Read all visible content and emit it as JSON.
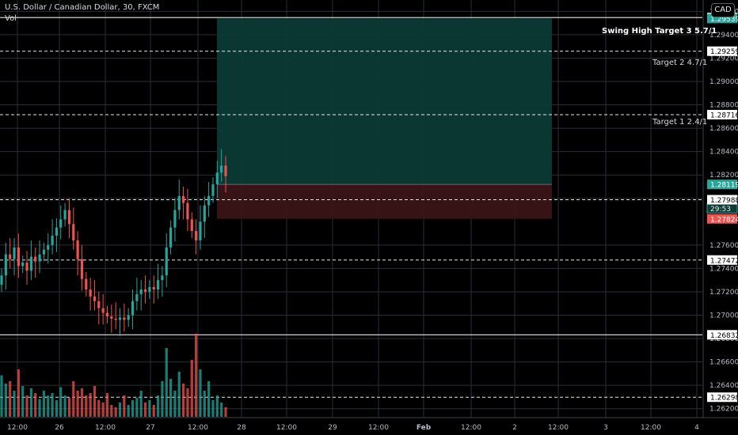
{
  "header": {
    "symbol_title": "U.S. Dollar / Canadian Dollar, 30, FXCM",
    "volume_label": "Vol",
    "currency_button": "CAD"
  },
  "price_axis": {
    "tick_labels": [
      "1.26200",
      "1.26400",
      "1.26600",
      "1.26800",
      "1.27000",
      "1.27200",
      "1.27400",
      "1.27600",
      "1.28000",
      "1.28200",
      "1.28400",
      "1.28600",
      "1.28800",
      "1.29000",
      "1.29200",
      "1.29400",
      "1.29600"
    ],
    "markers": [
      {
        "label": "1.29547",
        "style": "white"
      },
      {
        "label": "1.29539",
        "style": "green"
      },
      {
        "label": "1.29259",
        "style": "white"
      },
      {
        "label": "1.28716",
        "style": "white"
      },
      {
        "label": "1.28119",
        "style": "green"
      },
      {
        "label": "29:53",
        "style": "greenbox"
      },
      {
        "label": "1.27988",
        "style": "white"
      },
      {
        "label": "1.27824",
        "style": "red"
      },
      {
        "label": "1.27472",
        "style": "white"
      },
      {
        "label": "1.26832",
        "style": "white"
      },
      {
        "label": "1.26298",
        "style": "white"
      }
    ]
  },
  "time_axis": {
    "tick_labels": [
      "12:00",
      "26",
      "12:00",
      "27",
      "12:00",
      "28",
      "12:00",
      "29",
      "12:00",
      "Feb",
      "12:00",
      "2",
      "12:00",
      "3",
      "12:00",
      "4"
    ]
  },
  "annotations": {
    "target3": "Swing High Target 3 5.7/1",
    "target2": "Target 2 4.7/1",
    "target1": "Target 1 2.4/1"
  },
  "colors": {
    "background": "#000000",
    "up_candle": "#26a69a",
    "down_candle": "#ef5350",
    "profit_zone": "#0b3a35",
    "loss_zone": "#3a1416",
    "grid": "#2a2e39"
  },
  "chart_data": {
    "type": "candlestick",
    "symbol": "USDCAD",
    "timeframe": "30",
    "y_range": [
      1.2611,
      1.2967
    ],
    "trade": {
      "entry": 1.28119,
      "take_profit": 1.29539,
      "stop_loss": 1.27824
    },
    "levels": [
      1.29547,
      1.29259,
      1.28716,
      1.27988,
      1.27472,
      1.26832,
      1.26298
    ],
    "closes": [
      1.2734,
      1.2752,
      1.2748,
      1.2758,
      1.2742,
      1.2745,
      1.2738,
      1.275,
      1.2746,
      1.2752,
      1.2756,
      1.276,
      1.2768,
      1.2775,
      1.2782,
      1.279,
      1.2778,
      1.2764,
      1.2748,
      1.2731,
      1.2722,
      1.2716,
      1.2712,
      1.2706,
      1.2702,
      1.2699,
      1.2697,
      1.2696,
      1.2698,
      1.2696,
      1.27,
      1.2712,
      1.2718,
      1.2722,
      1.272,
      1.2724,
      1.2722,
      1.273,
      1.2734,
      1.2758,
      1.2775,
      1.279,
      1.2802,
      1.2796,
      1.2782,
      1.2772,
      1.2764,
      1.278,
      1.2794,
      1.2802,
      1.2812,
      1.2822,
      1.2828,
      1.2819
    ],
    "volumes": [
      35,
      28,
      30,
      22,
      40,
      26,
      18,
      24,
      20,
      15,
      22,
      18,
      20,
      14,
      25,
      18,
      16,
      30,
      22,
      24,
      18,
      20,
      26,
      14,
      12,
      20,
      10,
      8,
      12,
      18,
      10,
      14,
      16,
      22,
      12,
      14,
      10,
      18,
      30,
      58,
      32,
      22,
      38,
      28,
      24,
      48,
      70,
      40,
      22,
      30,
      14,
      18,
      12,
      8
    ]
  }
}
